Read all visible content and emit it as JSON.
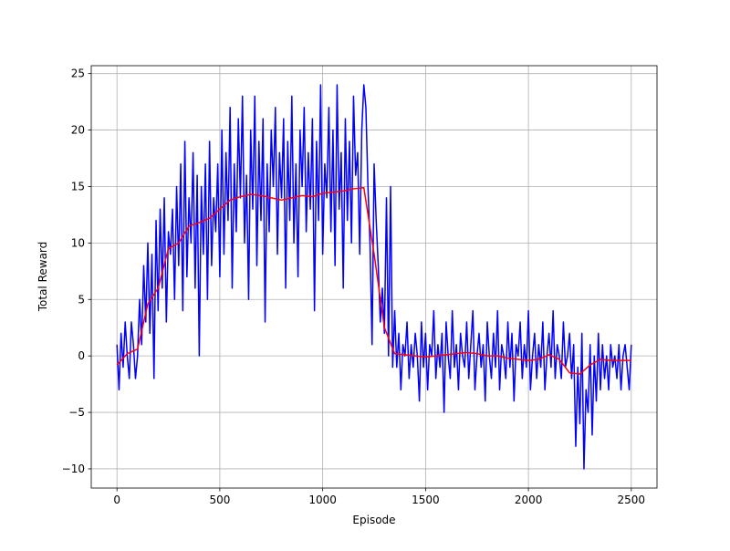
{
  "chart_data": {
    "type": "line",
    "xlabel": "Episode",
    "ylabel": "Total Reward",
    "xlim": [
      -125,
      2625
    ],
    "ylim": [
      -11.7,
      25.7
    ],
    "xticks": [
      0,
      500,
      1000,
      1500,
      2000,
      2500
    ],
    "yticks": [
      {
        "value": -10,
        "label": "−10"
      },
      {
        "value": -5,
        "label": "−5"
      },
      0,
      5,
      10,
      15,
      20,
      25
    ],
    "grid": true,
    "series": [
      {
        "color": "#0000ff",
        "x": [
          0,
          10,
          20,
          30,
          40,
          50,
          60,
          70,
          80,
          90,
          100,
          110,
          120,
          130,
          140,
          150,
          160,
          170,
          180,
          190,
          200,
          210,
          220,
          230,
          240,
          250,
          260,
          270,
          280,
          290,
          300,
          310,
          320,
          330,
          340,
          350,
          360,
          370,
          380,
          390,
          400,
          410,
          420,
          430,
          440,
          450,
          460,
          470,
          480,
          490,
          500,
          510,
          520,
          530,
          540,
          550,
          560,
          570,
          580,
          590,
          600,
          610,
          620,
          630,
          640,
          650,
          660,
          670,
          680,
          690,
          700,
          710,
          720,
          730,
          740,
          750,
          760,
          770,
          780,
          790,
          800,
          810,
          820,
          830,
          840,
          850,
          860,
          870,
          880,
          890,
          900,
          910,
          920,
          930,
          940,
          950,
          960,
          970,
          980,
          990,
          1000,
          1010,
          1020,
          1030,
          1040,
          1050,
          1060,
          1070,
          1080,
          1090,
          1100,
          1110,
          1120,
          1130,
          1140,
          1150,
          1160,
          1170,
          1180,
          1190,
          1200,
          1210,
          1220,
          1230,
          1240,
          1250,
          1260,
          1270,
          1280,
          1290,
          1300,
          1310,
          1320,
          1330,
          1340,
          1350,
          1360,
          1370,
          1380,
          1390,
          1400,
          1410,
          1420,
          1430,
          1440,
          1450,
          1460,
          1470,
          1480,
          1490,
          1500,
          1510,
          1520,
          1530,
          1540,
          1550,
          1560,
          1570,
          1580,
          1590,
          1600,
          1610,
          1620,
          1630,
          1640,
          1650,
          1660,
          1670,
          1680,
          1690,
          1700,
          1710,
          1720,
          1730,
          1740,
          1750,
          1760,
          1770,
          1780,
          1790,
          1800,
          1810,
          1820,
          1830,
          1840,
          1850,
          1860,
          1870,
          1880,
          1890,
          1900,
          1910,
          1920,
          1930,
          1940,
          1950,
          1960,
          1970,
          1980,
          1990,
          2000,
          2010,
          2020,
          2030,
          2040,
          2050,
          2060,
          2070,
          2080,
          2090,
          2100,
          2110,
          2120,
          2130,
          2140,
          2150,
          2160,
          2170,
          2180,
          2190,
          2200,
          2210,
          2220,
          2230,
          2240,
          2250,
          2260,
          2270,
          2280,
          2290,
          2300,
          2310,
          2320,
          2330,
          2340,
          2350,
          2360,
          2370,
          2380,
          2390,
          2400,
          2410,
          2420,
          2430,
          2440,
          2450,
          2460,
          2470,
          2480,
          2490,
          2500
        ],
        "values": [
          1,
          -3,
          2,
          -1,
          3,
          0,
          -2,
          3,
          1,
          -2,
          0,
          5,
          1,
          8,
          3,
          10,
          2,
          9,
          -2,
          12,
          4,
          13,
          6,
          14,
          3,
          11,
          9,
          13,
          5,
          15,
          8,
          17,
          4,
          19,
          7,
          14,
          10,
          18,
          6,
          16,
          0,
          15,
          9,
          17,
          5,
          19,
          8,
          14,
          11,
          17,
          7,
          20,
          9,
          18,
          12,
          22,
          6,
          17,
          11,
          21,
          14,
          23,
          10,
          16,
          5,
          20,
          13,
          23,
          8,
          19,
          12,
          21,
          3,
          17,
          11,
          20,
          15,
          22,
          9,
          18,
          14,
          21,
          6,
          19,
          12,
          23,
          10,
          17,
          7,
          20,
          15,
          22,
          11,
          18,
          13,
          21,
          4,
          19,
          12,
          24,
          9,
          17,
          14,
          22,
          11,
          20,
          8,
          24,
          13,
          18,
          6,
          21,
          12,
          19,
          10,
          23,
          16,
          18,
          9,
          20,
          24,
          22,
          15,
          10,
          1,
          17,
          12,
          8,
          3,
          6,
          2,
          14,
          0,
          15,
          -1,
          4,
          -1,
          2,
          -3,
          1,
          0,
          3,
          -2,
          1,
          -1,
          2,
          0,
          -4,
          3,
          -1,
          2,
          -3,
          1,
          0,
          4,
          -2,
          1,
          -1,
          2,
          -5,
          3,
          0,
          -2,
          4,
          -1,
          1,
          -3,
          2,
          0,
          -1,
          3,
          -2,
          1,
          4,
          -3,
          0,
          2,
          -1,
          1,
          -4,
          3,
          0,
          -2,
          2,
          -1,
          4,
          -3,
          1,
          0,
          -2,
          3,
          -1,
          2,
          -4,
          1,
          0,
          3,
          -2,
          1,
          -1,
          4,
          -3,
          0,
          2,
          -2,
          1,
          -1,
          3,
          -3,
          0,
          2,
          -1,
          4,
          -2,
          1,
          0,
          -2,
          3,
          -1,
          0,
          2,
          -2,
          1,
          -8,
          -1,
          -6,
          2,
          -10,
          -3,
          -5,
          1,
          -7,
          0,
          -4,
          2,
          -3,
          1,
          -2,
          0,
          -3,
          1,
          -1,
          0,
          -2,
          1,
          -3,
          0,
          1,
          -1,
          -3,
          1
        ]
      },
      {
        "color": "#ff0000",
        "x": [
          0,
          50,
          100,
          150,
          200,
          250,
          300,
          350,
          400,
          450,
          500,
          550,
          600,
          650,
          700,
          750,
          800,
          850,
          900,
          950,
          1000,
          1050,
          1100,
          1150,
          1200,
          1250,
          1300,
          1350,
          1400,
          1450,
          1500,
          1550,
          1600,
          1650,
          1700,
          1750,
          1800,
          1850,
          1900,
          1950,
          2000,
          2050,
          2100,
          2150,
          2200,
          2250,
          2300,
          2350,
          2400,
          2450,
          2500
        ],
        "values": [
          -0.8,
          0.2,
          0.6,
          4.6,
          6,
          9.5,
          10,
          11.5,
          11.8,
          12.2,
          13,
          13.8,
          14.1,
          14.3,
          14.2,
          14,
          13.8,
          14,
          14.2,
          14.1,
          14.4,
          14.5,
          14.6,
          14.8,
          14.9,
          9,
          2.5,
          0.2,
          0.1,
          0,
          -0.1,
          0,
          0.1,
          0.2,
          0.3,
          0.2,
          0,
          0,
          -0.2,
          -0.3,
          -0.4,
          -0.3,
          0.1,
          -0.3,
          -1.5,
          -1.6,
          -0.8,
          -0.3,
          -0.4,
          -0.4,
          -0.4
        ]
      }
    ]
  }
}
